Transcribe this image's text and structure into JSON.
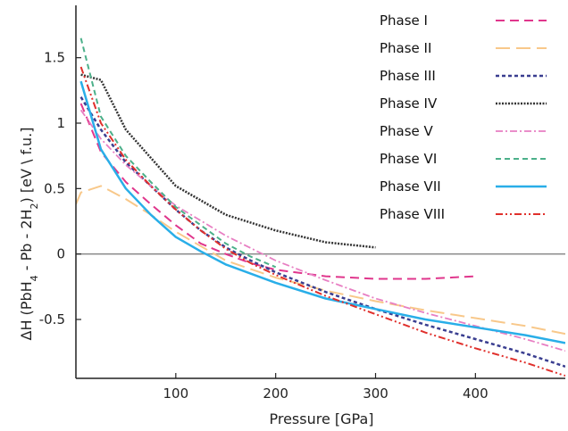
{
  "chart_data": {
    "type": "line",
    "xlabel": "Pressure [GPa]",
    "ylabel": "ΔH (PbH4 - Pb - 2H2) [eV \\ f.u.]",
    "xlim": [
      0,
      490
    ],
    "ylim": [
      -0.95,
      1.9
    ],
    "xticks": [
      "100",
      "200",
      "300",
      "400"
    ],
    "yticks": [
      "1.5",
      "1",
      "0.5",
      "0",
      "-0.5"
    ],
    "grid": false,
    "legend_position": "top-right",
    "zero_line": true,
    "series": [
      {
        "name": "Phase I",
        "color": "#e0368c",
        "dash": "10,6",
        "width": 2,
        "x": [
          5,
          25,
          50,
          75,
          100,
          125,
          150,
          175,
          200,
          250,
          300,
          350,
          400
        ],
        "y": [
          1.15,
          0.78,
          0.55,
          0.38,
          0.22,
          0.08,
          0.0,
          -0.07,
          -0.12,
          -0.17,
          -0.19,
          -0.19,
          -0.17
        ]
      },
      {
        "name": "Phase II",
        "color": "#f8c88a",
        "dash": "16,7",
        "width": 2,
        "x": [
          0,
          5,
          25,
          50,
          75,
          100,
          150,
          200,
          250,
          300,
          350,
          400,
          450,
          490
        ],
        "y": [
          0.38,
          0.47,
          0.52,
          0.42,
          0.3,
          0.17,
          -0.05,
          -0.18,
          -0.28,
          -0.36,
          -0.43,
          -0.49,
          -0.55,
          -0.61
        ]
      },
      {
        "name": "Phase III",
        "color": "#3a3e90",
        "dash": "4,3",
        "width": 2.5,
        "x": [
          5,
          25,
          50,
          75,
          100,
          125,
          150,
          175,
          200,
          250,
          300,
          350,
          400,
          450,
          490
        ],
        "y": [
          1.2,
          0.95,
          0.7,
          0.52,
          0.34,
          0.18,
          0.05,
          -0.05,
          -0.14,
          -0.29,
          -0.42,
          -0.54,
          -0.65,
          -0.76,
          -0.86
        ]
      },
      {
        "name": "Phase IV",
        "color": "#333333",
        "dash": "2,1.5",
        "width": 2.5,
        "x": [
          5,
          25,
          50,
          100,
          150,
          200,
          250,
          300
        ],
        "y": [
          1.37,
          1.33,
          0.95,
          0.52,
          0.3,
          0.18,
          0.09,
          0.05
        ]
      },
      {
        "name": "Phase  V",
        "color": "#e87fc3",
        "dash": "8,3,2,3",
        "width": 1.8,
        "x": [
          5,
          25,
          50,
          75,
          100,
          150,
          200,
          250,
          300,
          350,
          400,
          450,
          490
        ],
        "y": [
          1.1,
          0.88,
          0.68,
          0.52,
          0.37,
          0.14,
          -0.05,
          -0.2,
          -0.34,
          -0.45,
          -0.55,
          -0.65,
          -0.74
        ]
      },
      {
        "name": "Phase  VI",
        "color": "#4cb08a",
        "dash": "6,4",
        "width": 2,
        "x": [
          5,
          25,
          50,
          75,
          100,
          125,
          150,
          175,
          200
        ],
        "y": [
          1.65,
          1.05,
          0.75,
          0.55,
          0.36,
          0.22,
          0.08,
          -0.02,
          -0.1
        ]
      },
      {
        "name": "Phase  VII",
        "color": "#29aee8",
        "dash": "",
        "width": 2.5,
        "x": [
          5,
          25,
          50,
          75,
          100,
          125,
          150,
          200,
          250,
          300,
          350,
          400,
          450,
          490
        ],
        "y": [
          1.32,
          0.8,
          0.5,
          0.3,
          0.13,
          0.02,
          -0.08,
          -0.22,
          -0.34,
          -0.42,
          -0.5,
          -0.56,
          -0.62,
          -0.68
        ]
      },
      {
        "name": "Phase  VIII",
        "color": "#e0302c",
        "dash": "8,3,2,3,2,3",
        "width": 2,
        "x": [
          5,
          25,
          50,
          75,
          100,
          125,
          150,
          175,
          200,
          250,
          300,
          350,
          400,
          450,
          490
        ],
        "y": [
          1.43,
          1.0,
          0.72,
          0.52,
          0.34,
          0.18,
          0.04,
          -0.07,
          -0.16,
          -0.32,
          -0.46,
          -0.6,
          -0.72,
          -0.83,
          -0.93
        ]
      }
    ]
  }
}
